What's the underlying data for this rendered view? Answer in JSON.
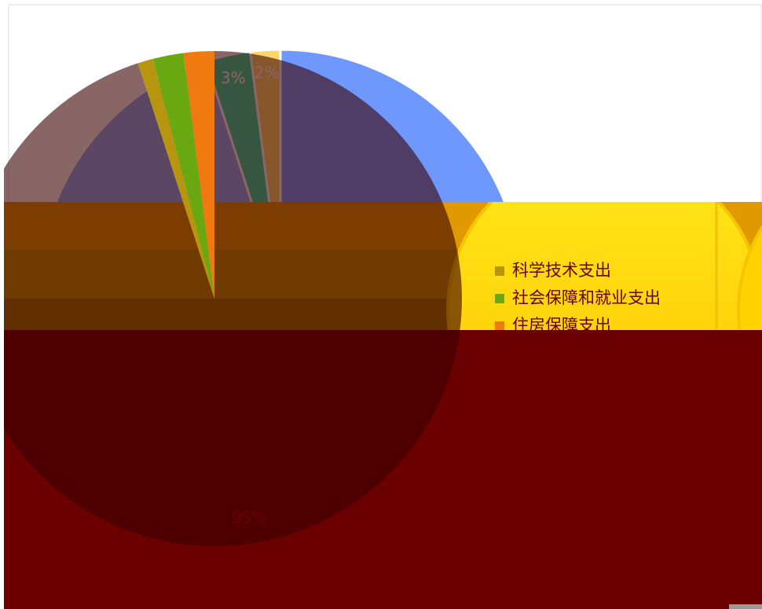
{
  "chart_data": [
    {
      "type": "pie",
      "categories": [
        null,
        null,
        null,
        null
      ],
      "values": [
        75,
        20,
        3,
        2
      ],
      "value_labels": [
        null,
        null,
        "3%",
        "2%"
      ],
      "colors": [
        "#6f98fc",
        "#8caefa",
        "#34d8a2",
        "#fcd66c"
      ]
    },
    {
      "type": "pie",
      "categories": [
        null,
        "科学技术支出",
        "社会保障和就业支出",
        "住房保障支出"
      ],
      "values": [
        95,
        1,
        2,
        2
      ],
      "value_labels": [
        "95%",
        null,
        null,
        null
      ],
      "colors": [
        "#3a0000",
        "#b8950e",
        "#6aa812",
        "#f07a10"
      ]
    }
  ]
}
